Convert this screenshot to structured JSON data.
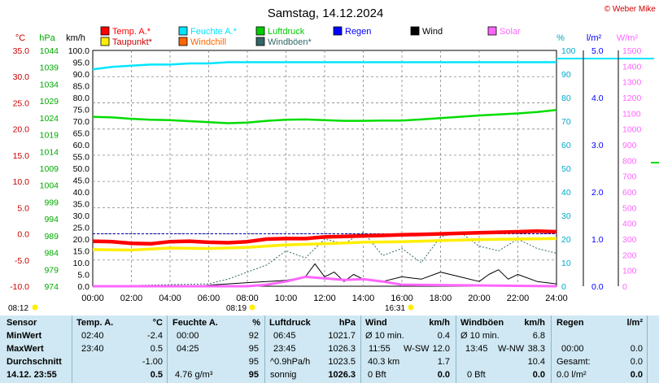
{
  "header": {
    "title": "Samstag, 14.12.2024",
    "credit": "© Weber Mike"
  },
  "colors": {
    "temp": "#ff0000",
    "humidity": "#00e5ff",
    "pressure": "#00dd00",
    "rain": "#0000ff",
    "wind": "#000000",
    "solar": "#ff66ff",
    "dewpoint": "#ffee00",
    "windchill": "#ff6600",
    "gust": "#336666",
    "humAxis": "#00aacc",
    "pressAxis": "#00aa00",
    "rainAxis": "#0000ff",
    "solarAxis": "#ff66ff",
    "grid": "#888888"
  },
  "legend": [
    {
      "label": "Temp. A.*",
      "color": "#ff0000"
    },
    {
      "label": "Feuchte A.*",
      "color": "#00e5ff"
    },
    {
      "label": "Luftdruck",
      "color": "#00cc00"
    },
    {
      "label": "Regen",
      "color": "#0000ff"
    },
    {
      "label": "Wind",
      "color": "#000000"
    },
    {
      "label": "Solar",
      "color": "#ff66ff"
    },
    {
      "label": "Taupunkt*",
      "color": "#ffee00"
    },
    {
      "label": "Windchill",
      "color": "#ff6600"
    },
    {
      "label": "Windböen*",
      "color": "#336666"
    }
  ],
  "units": {
    "temp": "°C",
    "press": "hPa",
    "wind": "km/h",
    "hum": "%",
    "rain": "l/m²",
    "solar": "W/m²"
  },
  "chart_data": {
    "type": "line",
    "x_ticks": [
      "00:00",
      "02:00",
      "04:00",
      "06:00",
      "08:00",
      "10:00",
      "12:00",
      "14:00",
      "16:00",
      "18:00",
      "20:00",
      "22:00",
      "24:00"
    ],
    "axes": {
      "temp": [
        "35.0",
        "30.0",
        "25.0",
        "20.0",
        "15.0",
        "10.0",
        "5.0",
        "0.0",
        "-5.0",
        "-10.0"
      ],
      "pressure": [
        "1044",
        "1039",
        "1034",
        "1029",
        "1024",
        "1019",
        "1014",
        "1009",
        "1004",
        "999",
        "994",
        "989",
        "984",
        "979",
        "974"
      ],
      "wind": [
        "100.0",
        "95.0",
        "90.0",
        "85.0",
        "80.0",
        "75.0",
        "70.0",
        "65.0",
        "60.0",
        "55.0",
        "50.0",
        "45.0",
        "40.0",
        "35.0",
        "30.0",
        "25.0",
        "20.0",
        "15.0",
        "10.0",
        "5.0",
        "0.0"
      ],
      "humidity": [
        "100",
        "90",
        "80",
        "70",
        "60",
        "50",
        "40",
        "30",
        "20",
        "10",
        "0"
      ],
      "rain": [
        "5.0",
        "4.0",
        "3.0",
        "2.0",
        "1.0",
        "0.0"
      ],
      "solar": [
        "1500",
        "1400",
        "1300",
        "1200",
        "1100",
        "1000",
        "900",
        "800",
        "700",
        "600",
        "500",
        "400",
        "300",
        "200",
        "100",
        "0"
      ]
    },
    "series": [
      {
        "name": "Temp. A.*",
        "x": [
          0,
          1,
          2,
          3,
          4,
          5,
          6,
          7,
          8,
          9,
          10,
          11,
          12,
          13,
          14,
          15,
          16,
          17,
          18,
          19,
          20,
          21,
          22,
          23,
          24
        ],
        "y": [
          -1.4,
          -1.5,
          -1.8,
          -1.9,
          -1.5,
          -1.4,
          -1.6,
          -1.7,
          -1.5,
          -1.0,
          -0.9,
          -0.9,
          -0.6,
          -0.5,
          -0.4,
          -0.3,
          -0.2,
          -0.1,
          0.0,
          0.1,
          0.2,
          0.3,
          0.4,
          0.5,
          0.4
        ]
      },
      {
        "name": "Taupunkt*",
        "x": [
          0,
          2,
          4,
          6,
          8,
          10,
          12,
          14,
          16,
          18,
          20,
          22,
          24
        ],
        "y": [
          -3.0,
          -3.1,
          -2.7,
          -2.8,
          -2.6,
          -2.1,
          -1.9,
          -1.6,
          -1.5,
          -1.3,
          -1.1,
          -1.0,
          -0.9
        ]
      },
      {
        "name": "Feuchte A.*",
        "x": [
          0,
          1,
          2,
          3,
          4,
          5,
          6,
          7,
          8,
          9,
          10,
          12,
          24
        ],
        "y": [
          92,
          93,
          93.5,
          94,
          94,
          94.5,
          94.5,
          95,
          95,
          95,
          95,
          95,
          95
        ]
      },
      {
        "name": "Luftdruck",
        "x": [
          0,
          1,
          2,
          3,
          4,
          5,
          6,
          7,
          8,
          9,
          10,
          11,
          12,
          13,
          14,
          15,
          16,
          17,
          18,
          19,
          20,
          21,
          22,
          23,
          24
        ],
        "y": [
          1024.3,
          1024.1,
          1023.7,
          1023.4,
          1023.3,
          1023.0,
          1022.7,
          1022.4,
          1022.6,
          1023.1,
          1023.4,
          1023.5,
          1023.3,
          1023.1,
          1023.1,
          1023.2,
          1023.2,
          1023.5,
          1023.9,
          1024.3,
          1024.7,
          1025.0,
          1025.3,
          1025.7,
          1026.3
        ]
      },
      {
        "name": "Wind",
        "x": [
          0,
          5,
          6,
          7,
          8,
          9,
          10,
          11,
          11.5,
          12,
          12.5,
          13,
          13.5,
          14,
          15,
          16,
          17,
          18,
          19,
          20,
          20.5,
          21,
          21.5,
          22,
          23,
          24
        ],
        "y": [
          0,
          0,
          0.5,
          1,
          1.5,
          2,
          2.5,
          4,
          9.5,
          4,
          6,
          2,
          5,
          3,
          2,
          4,
          3,
          6,
          4,
          2,
          5,
          7,
          3,
          5,
          2,
          1
        ]
      },
      {
        "name": "Windböen*",
        "x": [
          0,
          6,
          7,
          8,
          9,
          10,
          11,
          12,
          13,
          14,
          15,
          16,
          17,
          18,
          19,
          20,
          21,
          22,
          23,
          24
        ],
        "y": [
          0,
          1,
          3,
          6,
          9,
          15,
          12,
          20,
          18,
          23,
          13,
          16,
          10,
          21,
          23,
          17,
          15,
          20,
          16,
          14
        ]
      },
      {
        "name": "Solar",
        "x": [
          0,
          8,
          9,
          10,
          11,
          12,
          13,
          14,
          15,
          16,
          24
        ],
        "y": [
          0,
          0,
          10,
          30,
          60,
          50,
          40,
          45,
          30,
          10,
          0
        ]
      }
    ]
  },
  "footer": {
    "left_time": "08:12",
    "sunrise": "08:19",
    "sunset": "16:31"
  },
  "table": {
    "sensor": [
      "Sensor",
      "MinWert",
      "MaxWert",
      "Durchschnitt",
      "14.12. 23:55"
    ],
    "temp": {
      "header": "Temp. A.",
      "unit": "°C",
      "min_time": "02:40",
      "min": "-2.4",
      "max_time": "23:40",
      "max": "0.5",
      "avg": "-1.00",
      "cur": "0.5"
    },
    "hum": {
      "header": "Feuchte A.",
      "unit": "%",
      "min_time": "00:00",
      "min": "92",
      "max_time": "04:25",
      "max": "95",
      "avg": "95",
      "abs": "4.76 g/m³",
      "cur": "95"
    },
    "press": {
      "header": "Luftdruck",
      "unit": "hPa",
      "min_time": "06:45",
      "min": "1021.7",
      "max_time": "23:45",
      "max": "1026.3",
      "trend": "^0.9hPa/h",
      "avg": "1023.5",
      "cond": "sonnig",
      "cur": "1026.3"
    },
    "wind": {
      "header": "Wind",
      "unit": "km/h",
      "l1": "Ø 10 min.",
      "v1": "0.4",
      "l2": "11:55",
      "dir": "W-SW",
      "v2": "12.0",
      "l3": "40.3 km",
      "v3": "1.7",
      "l4": "0 Bft",
      "v4": "0.0"
    },
    "gust": {
      "header": "Windböen",
      "unit": "km/h",
      "l1": "Ø 10 min.",
      "v1": "6.8",
      "l2": "13:45",
      "dir": "W-NW",
      "v2": "38.3",
      "v3": "10.4",
      "l4": "0 Bft",
      "v4": "0.0"
    },
    "rain": {
      "header": "Regen",
      "unit": "l/m²",
      "l2": "00:00",
      "v2": "0.0",
      "l3": "Gesamt:",
      "v3": "0.0",
      "l4": "0.0 l/m²",
      "v4": "0.0"
    }
  }
}
